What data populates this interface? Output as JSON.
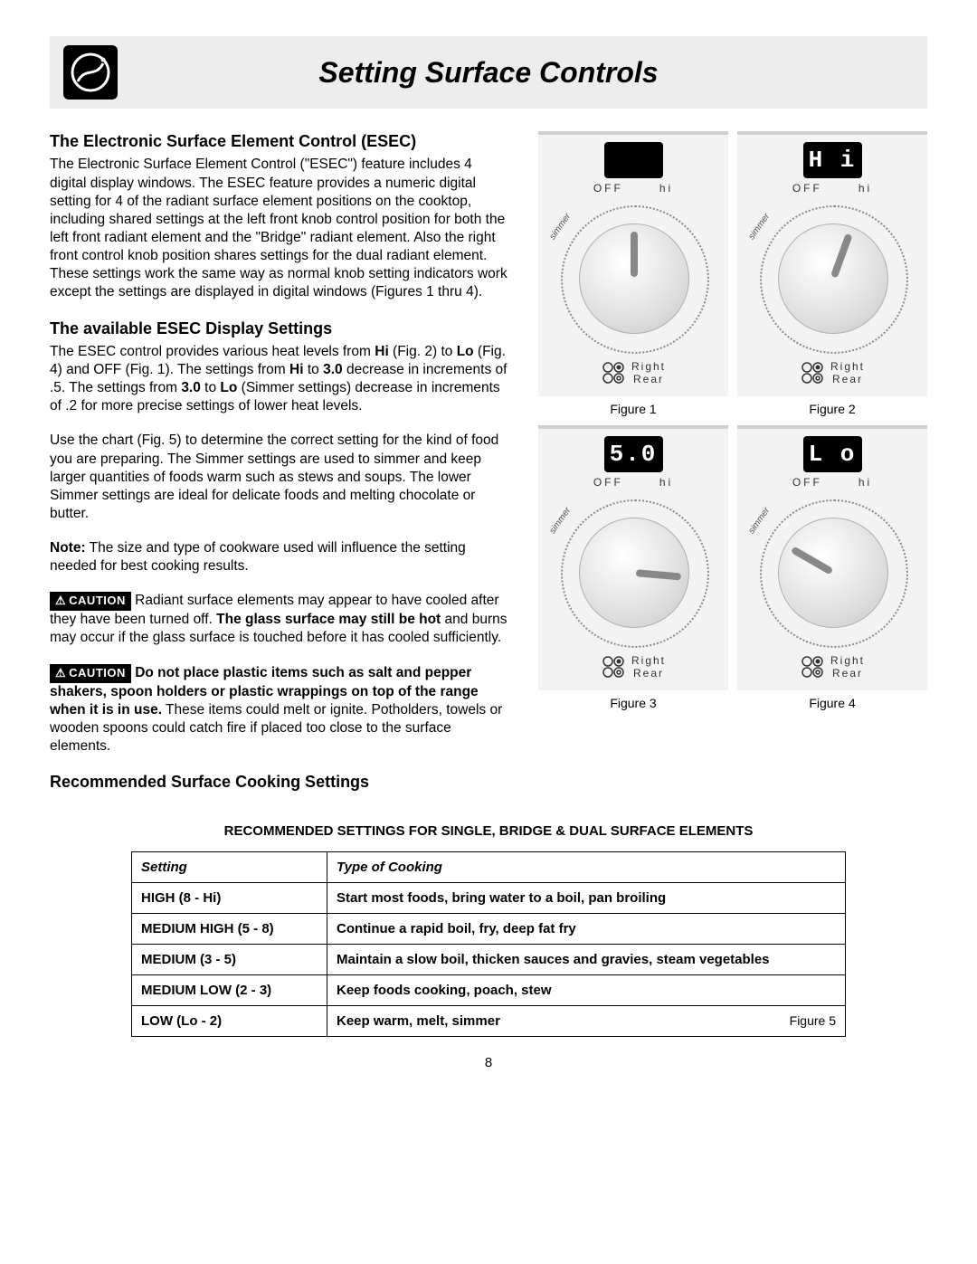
{
  "header": {
    "title": "Setting Surface Controls"
  },
  "section1": {
    "heading": "The Electronic Surface Element Control (ESEC)",
    "body": "The Electronic Surface Element Control (\"ESEC\") feature includes 4 digital display windows. The ESEC feature provides a numeric digital setting for 4 of the radiant surface element positions on the cooktop, including shared settings at the left front knob control position for both the left front radiant element and the \"Bridge\" radiant element. Also the right front control knob position shares settings for the dual radiant element. These settings work the same way as normal knob setting indicators work except the settings are displayed in digital windows (Figures 1 thru 4)."
  },
  "section2": {
    "heading": "The available ESEC Display Settings",
    "p1_a": "The ESEC control provides various heat levels from ",
    "p1_hi": "Hi",
    "p1_b": " (Fig. 2) to ",
    "p1_lo": "Lo",
    "p1_c": " (Fig. 4) and OFF (Fig. 1). The settings from ",
    "p1_hi2": "Hi",
    "p1_d": " to ",
    "p1_30": "3.0",
    "p1_e": " decrease in increments of .5. The settings from ",
    "p1_30b": "3.0",
    "p1_f": " to ",
    "p1_lo2": "Lo",
    "p1_g": " (Simmer settings) decrease in increments of .2 for more precise settings of lower heat levels.",
    "p2": "Use the chart (Fig. 5) to determine the correct setting for the kind of food you are preparing. The Simmer settings are used to simmer and keep larger quantities of foods warm such as stews and soups. The lower Simmer settings are ideal for delicate foods and melting chocolate or butter.",
    "note_label": "Note:",
    "note_text": " The size and type of cookware used will influence the setting needed for best cooking results."
  },
  "caution1": {
    "label": "CAUTION",
    "a": " Radiant surface elements may appear to have cooled after they have been turned off. ",
    "b": "The glass surface may still be hot",
    "c": " and burns may occur if the glass surface is touched before it has cooled sufficiently."
  },
  "caution2": {
    "label": "CAUTION",
    "a": " ",
    "b": "Do not place plastic items such as salt and pepper shakers, spoon holders or plastic wrappings on top of the range when it is in use.",
    "c": " These items could melt or ignite. Potholders, towels or wooden spoons could catch fire if placed too close to the surface elements."
  },
  "section3": {
    "heading": "Recommended Surface Cooking Settings"
  },
  "figures": [
    {
      "display": "",
      "caption": "Figure 1",
      "rotation": 0
    },
    {
      "display": "H i",
      "caption": "Figure 2",
      "rotation": 20
    },
    {
      "display": "5.0",
      "caption": "Figure 3",
      "rotation": 95
    },
    {
      "display": "L o",
      "caption": "Figure 4",
      "rotation": 300
    }
  ],
  "knob_labels": {
    "off": "OFF",
    "hi": "hi",
    "simmer": "simmer"
  },
  "position": {
    "line1": "Right",
    "line2": "Rear"
  },
  "table": {
    "title": "RECOMMENDED SETTINGS FOR SINGLE, BRIDGE & DUAL SURFACE ELEMENTS",
    "headers": {
      "setting": "Setting",
      "type": "Type of Cooking"
    },
    "rows": [
      {
        "setting": "HIGH (8 - Hi)",
        "type": "Start most foods, bring water to a boil, pan broiling"
      },
      {
        "setting": "MEDIUM HIGH (5 - 8)",
        "type": "Continue a rapid boil, fry, deep fat fry"
      },
      {
        "setting": "MEDIUM (3 - 5)",
        "type": "Maintain a slow boil, thicken sauces and gravies, steam vegetables"
      },
      {
        "setting": "MEDIUM LOW (2 - 3)",
        "type": "Keep foods cooking, poach, stew"
      },
      {
        "setting": "LOW (Lo - 2)",
        "type": "Keep warm, melt, simmer"
      }
    ],
    "fig5": "Figure 5"
  },
  "page_number": "8",
  "colors": {
    "header_bg": "#ededed",
    "display_bg": "#000000",
    "display_fg": "#ffffff",
    "panel_bg": "#f3f3f3"
  }
}
